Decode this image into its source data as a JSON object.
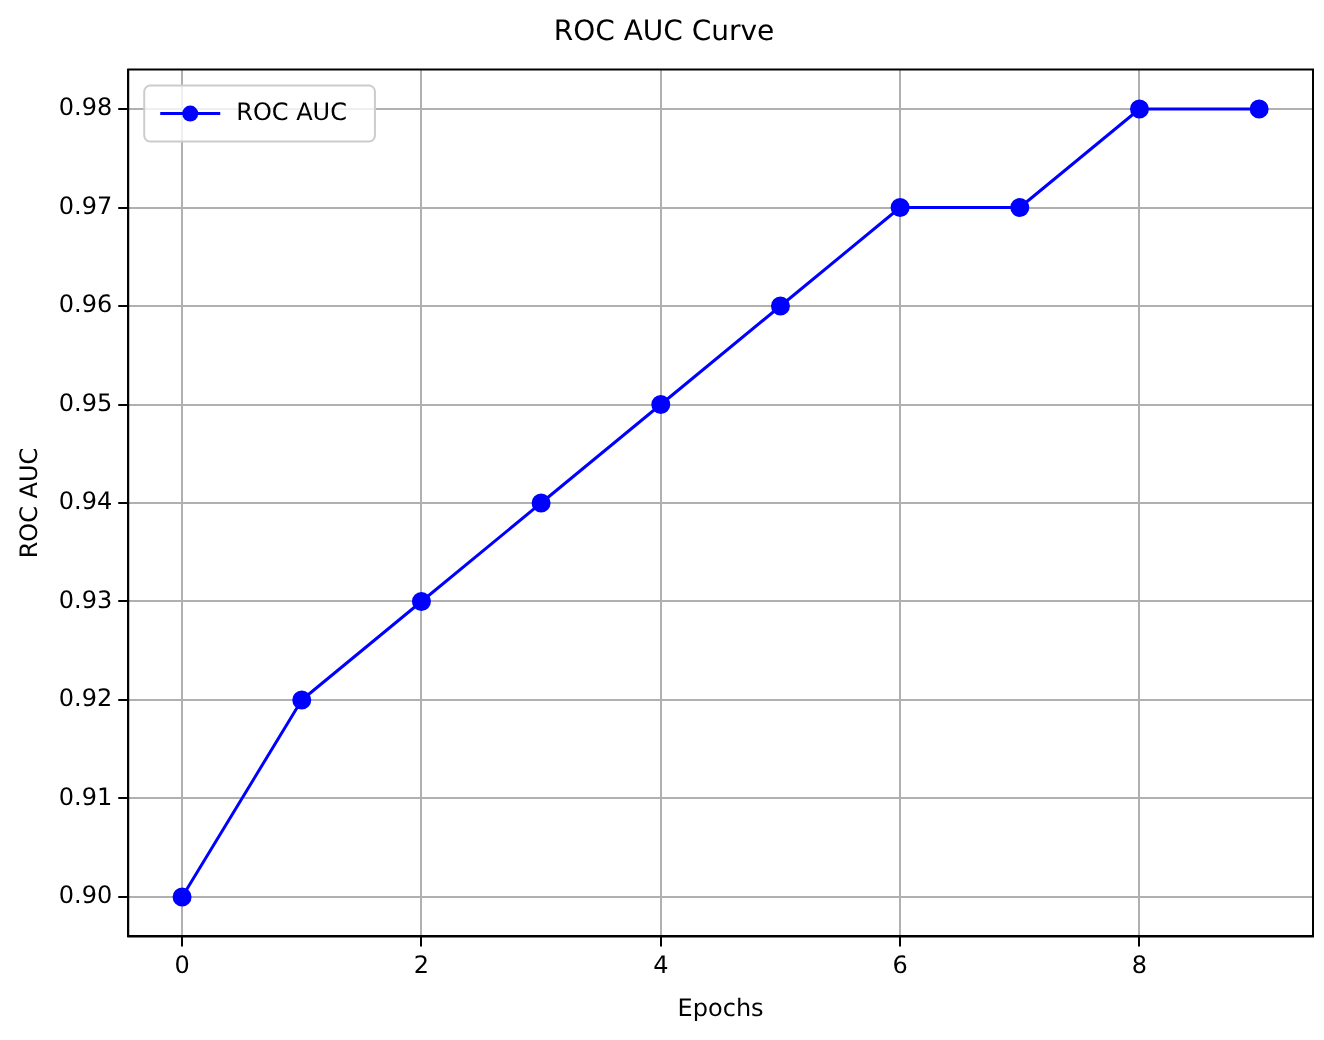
{
  "chart_data": {
    "type": "line",
    "title": "ROC AUC Curve",
    "xlabel": "Epochs",
    "ylabel": "ROC AUC",
    "x": [
      0,
      1,
      2,
      3,
      4,
      5,
      6,
      7,
      8,
      9
    ],
    "series": [
      {
        "name": "ROC AUC",
        "color": "#0000ff",
        "values": [
          0.9,
          0.92,
          0.93,
          0.94,
          0.95,
          0.96,
          0.97,
          0.97,
          0.98,
          0.98
        ]
      }
    ],
    "xlim": [
      -0.45,
      9.45
    ],
    "xticks": [
      0,
      2,
      4,
      6,
      8
    ],
    "ylim": [
      0.896,
      0.984
    ],
    "yticks": [
      {
        "value": 0.9,
        "label": "0.90"
      },
      0.91,
      0.92,
      0.93,
      0.94,
      0.95,
      0.96,
      0.97,
      0.98
    ],
    "grid": true,
    "legend": "top left",
    "marker": "circle",
    "line_style": "solid"
  }
}
